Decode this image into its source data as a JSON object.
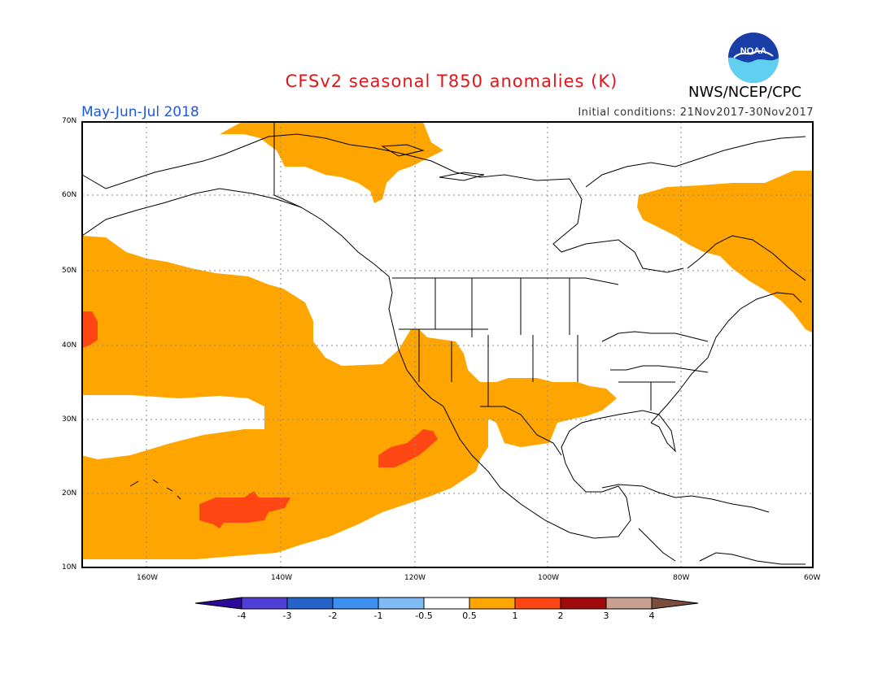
{
  "header": {
    "title": "CFSv2 seasonal T850 anomalies (K)",
    "agency": "NWS/NCEP/CPC",
    "logo_text": "NOAA",
    "season": "May-Jun-Jul 2018",
    "initial_conditions": "Initial conditions: 21Nov2017-30Nov2017"
  },
  "map": {
    "lat_labels": [
      "70N",
      "60N",
      "50N",
      "40N",
      "30N",
      "20N",
      "10N"
    ],
    "lon_labels": [
      "160W",
      "140W",
      "120W",
      "100W",
      "80W",
      "60W"
    ]
  },
  "colorbar": {
    "labels": [
      "-4",
      "-3",
      "-2",
      "-1",
      "-0.5",
      "0.5",
      "1",
      "2",
      "3",
      "4"
    ],
    "colors": [
      "#2b0a9a",
      "#4f3fd6",
      "#2563c9",
      "#3d8ff0",
      "#7fbcf5",
      "#ffffff",
      "#ffa500",
      "#ff4713",
      "#a00a0a",
      "#c8a090",
      "#7a4d3f"
    ]
  },
  "anomaly_colors": {
    "band_0_5_to_1": "#ffa500",
    "band_1_to_2": "#ff4713"
  }
}
